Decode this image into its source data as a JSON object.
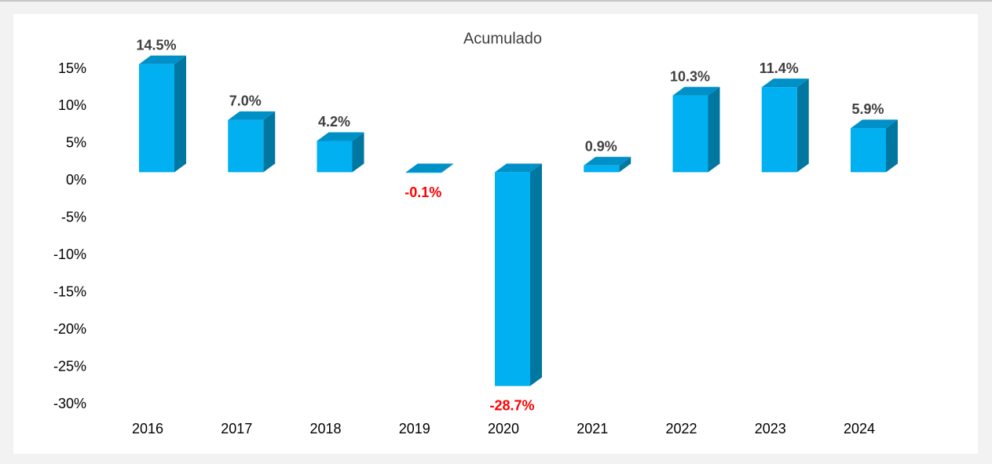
{
  "chart_data": {
    "type": "bar3d",
    "title": "Acumulado",
    "categories": [
      "2016",
      "2017",
      "2018",
      "2019",
      "2020",
      "2021",
      "2022",
      "2023",
      "2024"
    ],
    "values": [
      14.5,
      7.0,
      4.2,
      -0.1,
      -28.7,
      0.9,
      10.3,
      11.4,
      5.9
    ],
    "value_labels": [
      "14.5%",
      "7.0%",
      "4.2%",
      "-0.1%",
      "-28.7%",
      "0.9%",
      "10.3%",
      "11.4%",
      "5.9%"
    ],
    "color": "#00b0f0",
    "label_color": "#404040",
    "negative_label_color": "#ff0000",
    "ylim": [
      -30,
      15
    ],
    "yticks": [
      {
        "value": -30,
        "label": "-30%"
      },
      {
        "value": -25,
        "label": "-25%"
      },
      {
        "value": -20,
        "label": "-20%"
      },
      {
        "value": -15,
        "label": "-15%"
      },
      {
        "value": -10,
        "label": "-10%"
      },
      {
        "value": -5,
        "label": "-5%"
      },
      {
        "value": 0,
        "label": "0%"
      },
      {
        "value": 5,
        "label": "5%"
      },
      {
        "value": 10,
        "label": "10%"
      },
      {
        "value": 15,
        "label": "15%"
      }
    ],
    "grid": false
  }
}
